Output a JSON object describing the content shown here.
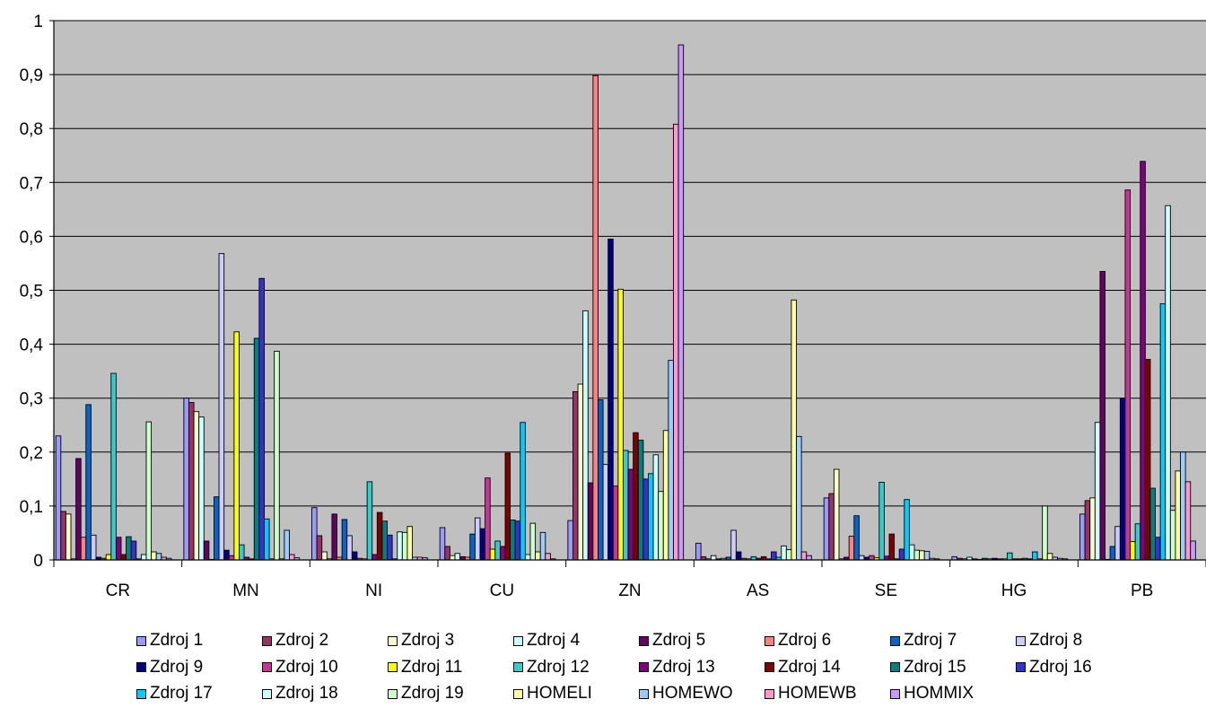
{
  "chart_data": {
    "type": "bar",
    "title": "",
    "xlabel": "",
    "ylabel": "",
    "ylim": [
      0,
      1
    ],
    "ytick_labels": [
      "0",
      "0,1",
      "0,2",
      "0,3",
      "0,4",
      "0,5",
      "0,6",
      "0,7",
      "0,8",
      "0,9",
      "1"
    ],
    "grid": true,
    "legend_position": "bottom",
    "categories": [
      "CR",
      "MN",
      "NI",
      "CU",
      "ZN",
      "AS",
      "SE",
      "HG",
      "PB"
    ],
    "series": [
      {
        "name": "Zdroj 1",
        "color": "#9999ff",
        "values": [
          0.23,
          0.3,
          0.097,
          0.06,
          0.073,
          0.031,
          0.115,
          0.006,
          0.085
        ]
      },
      {
        "name": "Zdroj 2",
        "color": "#993366",
        "values": [
          0.09,
          0.292,
          0.045,
          0.025,
          0.312,
          0.006,
          0.123,
          0.003,
          0.11
        ]
      },
      {
        "name": "Zdroj 3",
        "color": "#ffffcc",
        "values": [
          0.085,
          0.275,
          0.015,
          0.008,
          0.326,
          0.002,
          0.168,
          0.002,
          0.115
        ]
      },
      {
        "name": "Zdroj 4",
        "color": "#ccffff",
        "values": [
          0.002,
          0.265,
          0.002,
          0.012,
          0.462,
          0.008,
          0.002,
          0.005,
          0.255
        ]
      },
      {
        "name": "Zdroj 5",
        "color": "#660066",
        "values": [
          0.188,
          0.035,
          0.085,
          0.006,
          0.143,
          0.002,
          0.005,
          0.002,
          0.535
        ]
      },
      {
        "name": "Zdroj 6",
        "color": "#ff8080",
        "values": [
          0.042,
          0.001,
          0.005,
          0.005,
          0.898,
          0.003,
          0.044,
          0.001,
          0.001
        ]
      },
      {
        "name": "Zdroj 7",
        "color": "#0066cc",
        "values": [
          0.288,
          0.117,
          0.075,
          0.048,
          0.297,
          0.005,
          0.082,
          0.003,
          0.025
        ]
      },
      {
        "name": "Zdroj 8",
        "color": "#ccccff",
        "values": [
          0.046,
          0.568,
          0.045,
          0.078,
          0.177,
          0.055,
          0.008,
          0.002,
          0.062
        ]
      },
      {
        "name": "Zdroj 9",
        "color": "#000080",
        "values": [
          0.005,
          0.018,
          0.015,
          0.058,
          0.595,
          0.015,
          0.005,
          0.003,
          0.3
        ]
      },
      {
        "name": "Zdroj 10",
        "color": "#cc3399",
        "values": [
          0.003,
          0.008,
          0.003,
          0.152,
          0.137,
          0.003,
          0.008,
          0.002,
          0.686
        ]
      },
      {
        "name": "Zdroj 11",
        "color": "#ffff00",
        "values": [
          0.01,
          0.423,
          0.002,
          0.02,
          0.502,
          0.002,
          0.004,
          0.002,
          0.034
        ]
      },
      {
        "name": "Zdroj 12",
        "color": "#33cccc",
        "values": [
          0.346,
          0.028,
          0.145,
          0.035,
          0.203,
          0.006,
          0.144,
          0.013,
          0.067
        ]
      },
      {
        "name": "Zdroj 13",
        "color": "#800080",
        "values": [
          0.042,
          0.005,
          0.01,
          0.025,
          0.168,
          0.003,
          0.007,
          0.002,
          0.739
        ]
      },
      {
        "name": "Zdroj 14",
        "color": "#800000",
        "values": [
          0.01,
          0.002,
          0.088,
          0.198,
          0.236,
          0.006,
          0.048,
          0.002,
          0.372
        ]
      },
      {
        "name": "Zdroj 15",
        "color": "#008080",
        "values": [
          0.043,
          0.411,
          0.072,
          0.074,
          0.222,
          0.002,
          0.002,
          0.003,
          0.133
        ]
      },
      {
        "name": "Zdroj 16",
        "color": "#3333cc",
        "values": [
          0.035,
          0.522,
          0.046,
          0.072,
          0.15,
          0.015,
          0.02,
          0.002,
          0.042
        ]
      },
      {
        "name": "Zdroj 17",
        "color": "#00ccff",
        "values": [
          0.002,
          0.076,
          0.002,
          0.255,
          0.16,
          0.005,
          0.112,
          0.015,
          0.475
        ]
      },
      {
        "name": "Zdroj 18",
        "color": "#ccffff",
        "values": [
          0.01,
          0.002,
          0.052,
          0.01,
          0.195,
          0.026,
          0.028,
          0.002,
          0.657
        ]
      },
      {
        "name": "Zdroj 19",
        "color": "#ccffcc",
        "values": [
          0.256,
          0.387,
          0.051,
          0.068,
          0.127,
          0.019,
          0.018,
          0.1,
          0.092
        ]
      },
      {
        "name": "HOMELI",
        "color": "#ffff99",
        "values": [
          0.015,
          0.002,
          0.062,
          0.015,
          0.24,
          0.482,
          0.017,
          0.012,
          0.165
        ]
      },
      {
        "name": "HOMEWO",
        "color": "#99ccff",
        "values": [
          0.012,
          0.055,
          0.005,
          0.051,
          0.37,
          0.229,
          0.016,
          0.005,
          0.2
        ]
      },
      {
        "name": "HOMEWB",
        "color": "#ff99cc",
        "values": [
          0.005,
          0.01,
          0.005,
          0.012,
          0.808,
          0.015,
          0.003,
          0.003,
          0.145
        ]
      },
      {
        "name": "HOMMIX",
        "color": "#cc99ff",
        "values": [
          0.003,
          0.004,
          0.004,
          0.002,
          0.955,
          0.008,
          0.002,
          0.002,
          0.035
        ]
      }
    ]
  }
}
